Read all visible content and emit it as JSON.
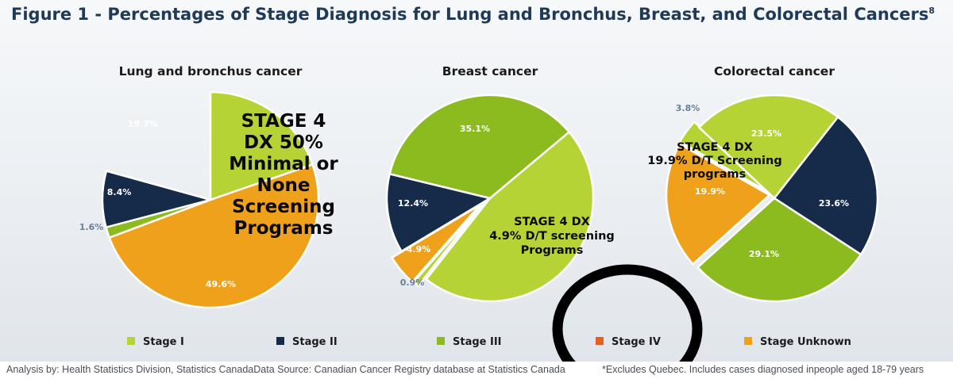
{
  "title": "Figure 1 - Percentages of Stage Diagnosis for Lung and Bronchus, Breast, and Colorectal Cancers",
  "title_sup": "8",
  "colors": {
    "stage_i": "#b5d334",
    "stage_ii": "#162a4a",
    "stage_iii": "#8bbb1e",
    "stage_iv": "#e0621d",
    "stage_unknown": "#f0a11b",
    "outline": "#ffffff"
  },
  "chart_data": [
    {
      "type": "pie",
      "title": "Lung and bronchus cancer",
      "slices": [
        {
          "stage": "Stage I",
          "value": 19.7,
          "label": "19.7%"
        },
        {
          "stage": "Stage II",
          "value": 8.4,
          "label": "8.4%"
        },
        {
          "stage": "Stage III",
          "value": 1.6,
          "label": "1.6%"
        },
        {
          "stage": "Stage IV",
          "value": 49.6,
          "label": "49.6%"
        },
        {
          "stage": "Stage Unknown",
          "value": 20.7,
          "label": ""
        }
      ],
      "annotation": [
        "STAGE 4",
        "DX 50%",
        "Minimal or",
        "None",
        "Screening",
        "Programs"
      ]
    },
    {
      "type": "pie",
      "title": "Breast cancer",
      "slices": [
        {
          "stage": "Stage I",
          "value": 46.7,
          "label": ""
        },
        {
          "stage": "Stage II",
          "value": 12.4,
          "label": "12.4%"
        },
        {
          "stage": "Stage III",
          "value": 35.1,
          "label": "35.1%"
        },
        {
          "stage": "Stage IV",
          "value": 4.9,
          "label": "4.9%"
        },
        {
          "stage": "Stage Unknown",
          "value": 0.9,
          "label": "0.9%"
        }
      ],
      "annotation": [
        "STAGE 4 DX",
        "4.9% D/T screening",
        "Programs"
      ]
    },
    {
      "type": "pie",
      "title": "Colorectal cancer",
      "slices": [
        {
          "stage": "Stage I",
          "value": 23.5,
          "label": "23.5%"
        },
        {
          "stage": "Stage II",
          "value": 23.6,
          "label": "23.6%"
        },
        {
          "stage": "Stage III",
          "value": 29.1,
          "label": "29.1%"
        },
        {
          "stage": "Stage IV",
          "value": 19.9,
          "label": "19.9%"
        },
        {
          "stage": "Stage Unknown",
          "value": 3.8,
          "label": "3.8%"
        }
      ],
      "annotation": [
        "STAGE 4 DX",
        "19.9%  D/T Screening",
        "programs"
      ]
    }
  ],
  "legend": [
    "Stage I",
    "Stage II",
    "Stage III",
    "Stage IV",
    "Stage Unknown"
  ],
  "footer": {
    "left": "Analysis by: Health Statistics Division, Statistics CanadaData Source: Canadian Cancer Registry database at Statistics Canada",
    "right": "*Excludes Quebec. Includes cases diagnosed inpeople aged 18-79 years"
  }
}
